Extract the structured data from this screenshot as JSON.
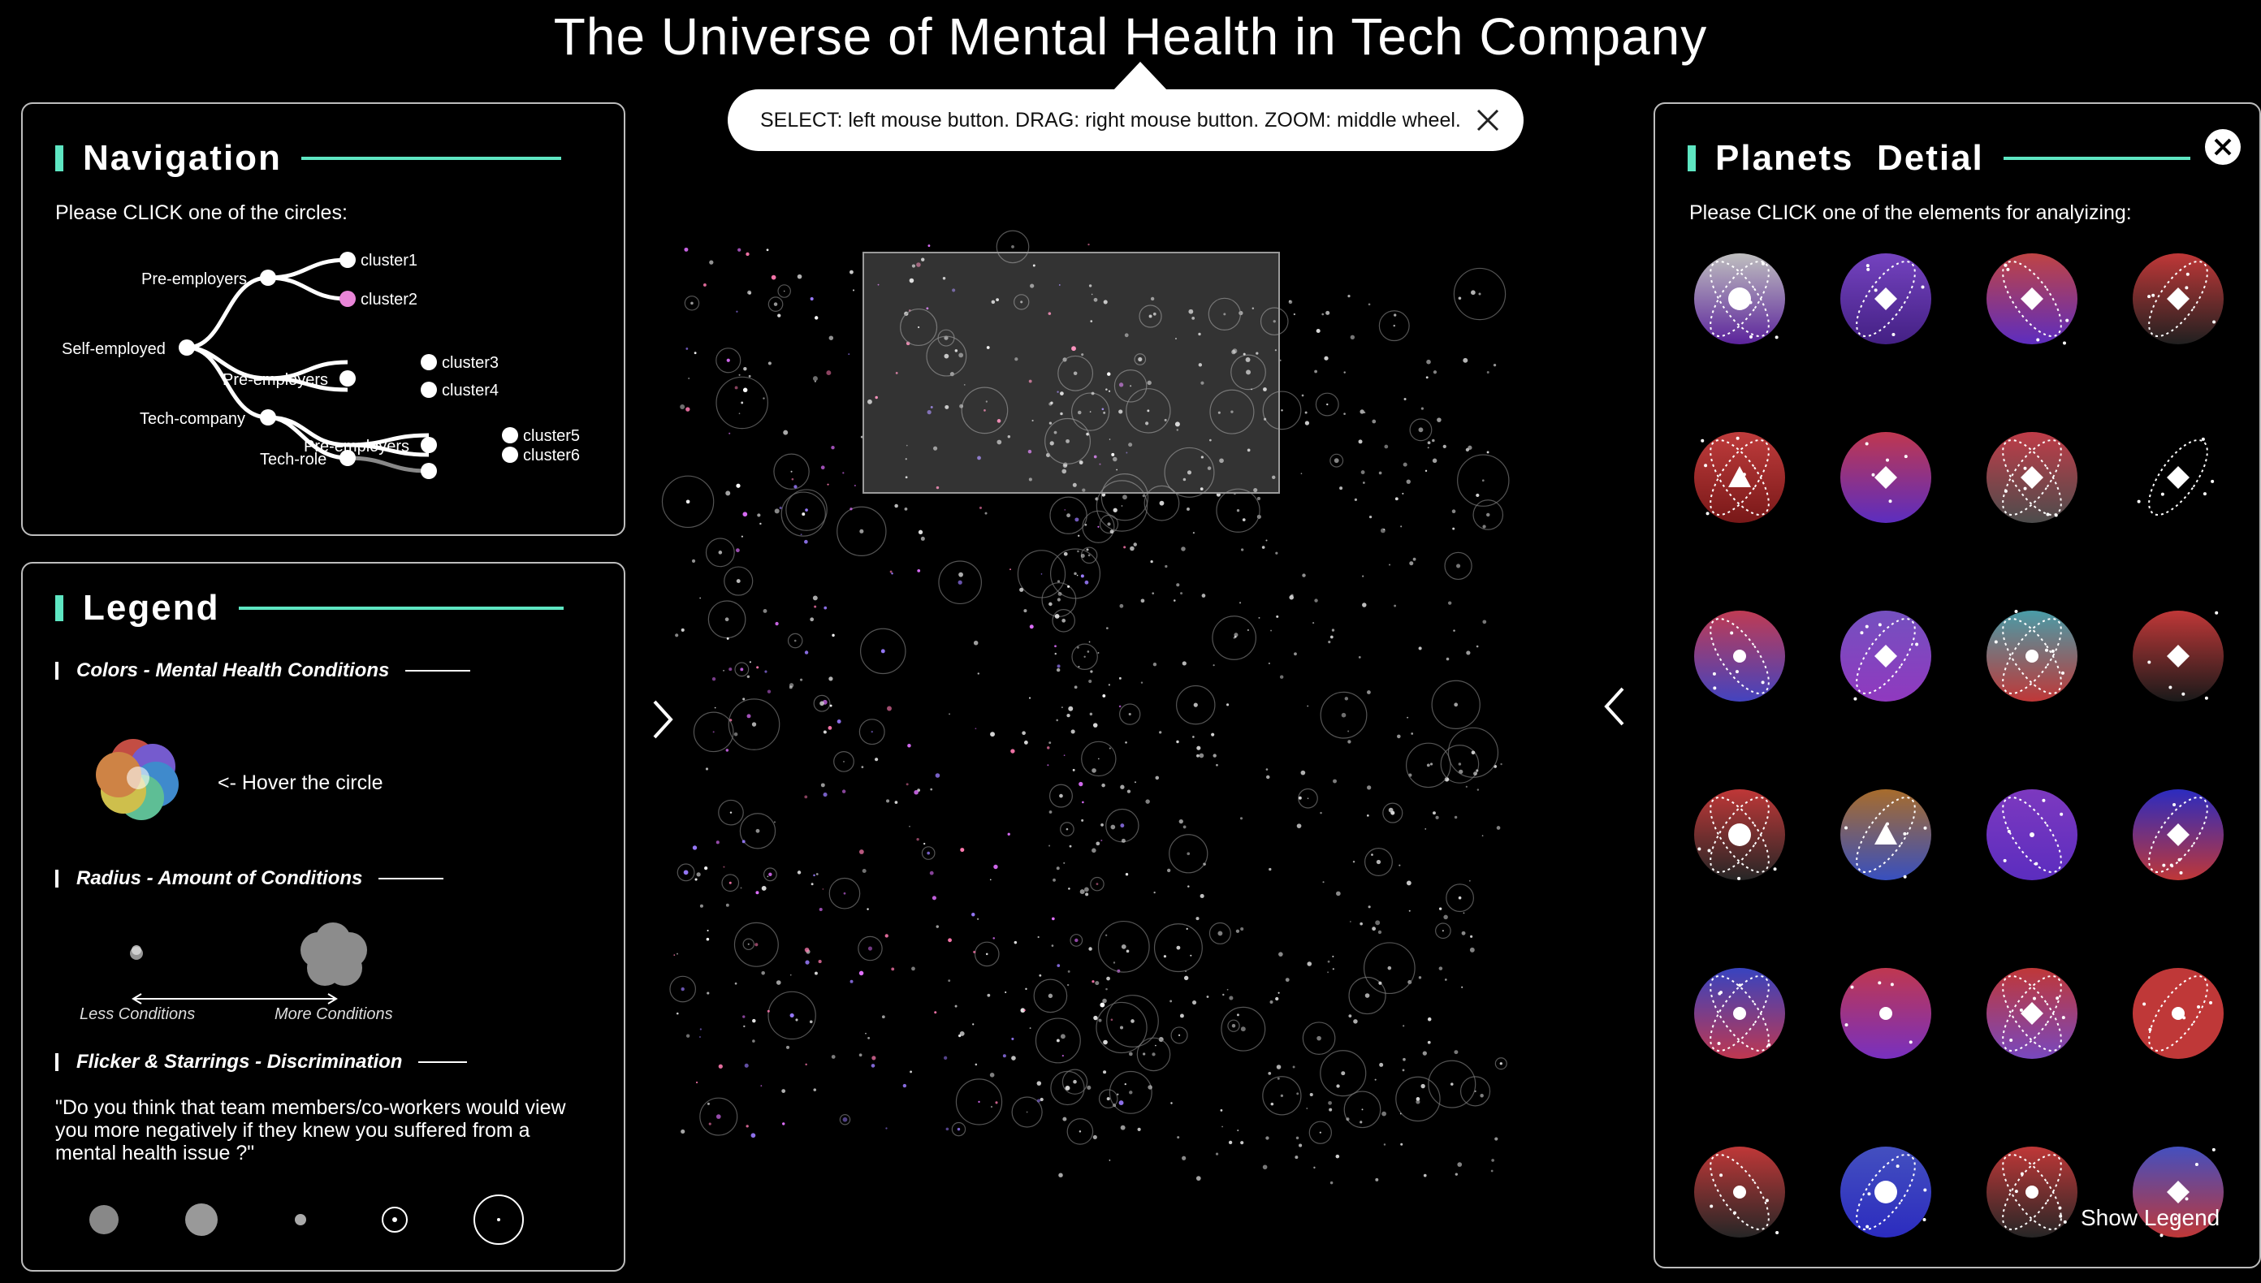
{
  "title": "The Universe of Mental Health in Tech Company",
  "hint": {
    "text": "SELECT: left mouse button. DRAG: right mouse button. ZOOM: middle wheel."
  },
  "navigation": {
    "title": "Navigation",
    "instruction": "Please CLICK one of the circles:",
    "nodes": {
      "self_employed": "Self-employed",
      "pre_employers_1": "Pre-employers",
      "pre_employers_2": "Pre-employers",
      "pre_employers_3": "Pre-employers",
      "tech_company": "Tech-company",
      "tech_role": "Tech-role",
      "cluster1": "cluster1",
      "cluster2": "cluster2",
      "cluster3": "cluster3",
      "cluster4": "cluster4",
      "cluster5": "cluster5",
      "cluster6": "cluster6"
    },
    "highlight_color": "#e985d8"
  },
  "legend": {
    "title": "Legend",
    "colors_heading": "Colors - Mental Health Conditions",
    "hover_text": "<- Hover the circle",
    "radius_heading": "Radius - Amount of Conditions",
    "less_label": "Less Conditions",
    "more_label": "More Conditions",
    "flicker_heading": "Flicker & Starrings - Discrimination",
    "question": "\"Do you think that team members/co-workers would view you more negatively if they knew you suffered from a mental health issue ?\""
  },
  "details": {
    "title": "Planets  Detial",
    "instruction": "Please CLICK one of the elements for analyizing:",
    "show_legend": "Show Legend"
  },
  "colors": {
    "accent": "#5ee6c2",
    "panel_border": "#bdbdbd"
  },
  "icons": {
    "close": "close-icon",
    "panel_close": "circle-close-icon",
    "left": "chevron-left-icon",
    "right": "chevron-right-icon"
  }
}
